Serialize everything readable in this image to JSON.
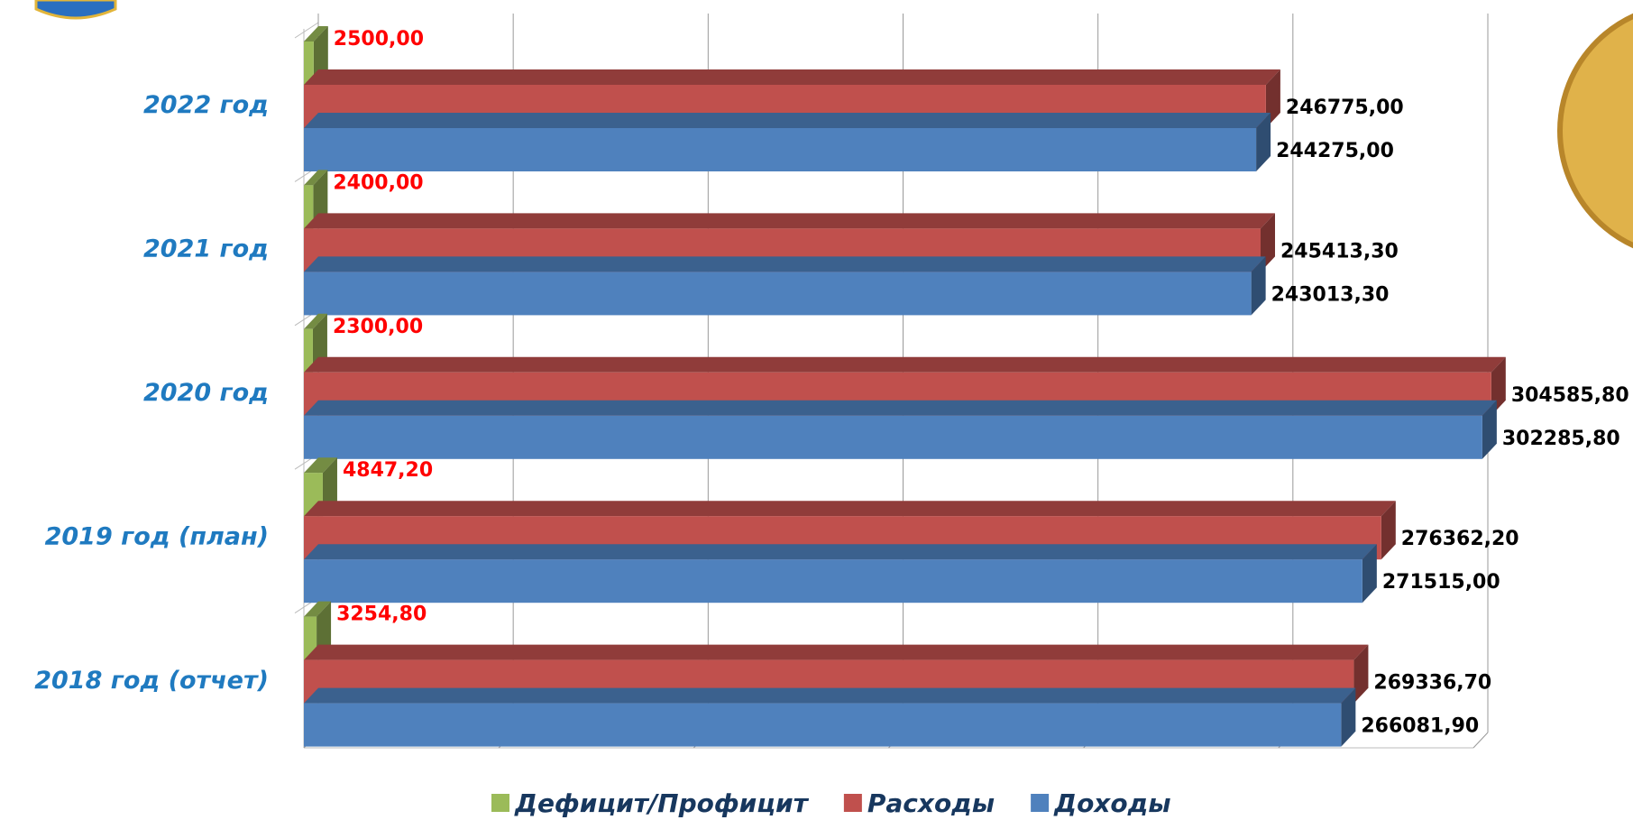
{
  "chart_data": {
    "type": "bar3d",
    "categories": [
      "2022 год",
      "2021 год",
      "2020 год",
      "2019 год  (план)",
      "2018 год (отчет)"
    ],
    "series": [
      {
        "name": "Дефицит/Профицит",
        "color": "#9bbb59",
        "values": [
          2500,
          2400,
          2300,
          4847.2,
          3254.8
        ],
        "value_labels": [
          "2500,00",
          "2400,00",
          "2300,00",
          "4847,20",
          "3254,80"
        ]
      },
      {
        "name": "Расходы",
        "color": "#c0504d",
        "values": [
          246775,
          245413.3,
          304585.8,
          276362.2,
          269336.7
        ],
        "value_labels": [
          "246775,00",
          "245413,30",
          "304585,80",
          "276362,20",
          "269336,70"
        ]
      },
      {
        "name": "Доходы",
        "color": "#4f81bd",
        "values": [
          244275,
          243013.3,
          302285.8,
          271515,
          266081.9
        ],
        "value_labels": [
          "244275,00",
          "243013,30",
          "302285,80",
          "271515,00",
          "266081,90"
        ]
      }
    ],
    "xlim": [
      0,
      300000
    ],
    "xticks": [
      0,
      50000,
      100000,
      150000,
      200000,
      250000,
      300000
    ],
    "grid": true
  }
}
